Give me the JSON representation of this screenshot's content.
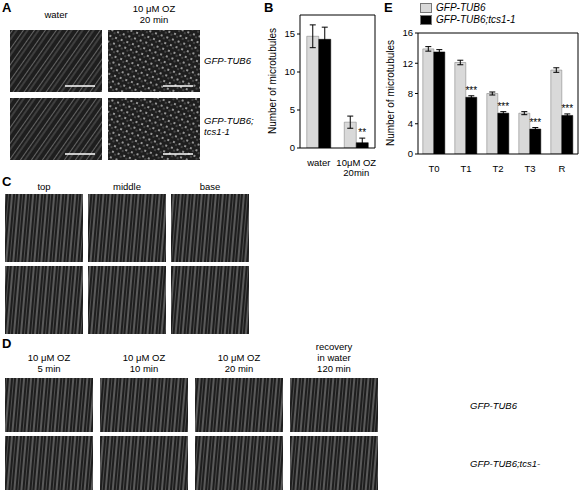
{
  "panels": {
    "A": {
      "letter": "A",
      "columns": [
        "water",
        "10 μM OZ\n20 min"
      ],
      "rows": [
        "GFP-TUB6",
        "GFP-TUB6;\ntcs1-1"
      ]
    },
    "C": {
      "letter": "C",
      "columns": [
        "top",
        "middle",
        "base"
      ]
    },
    "D": {
      "letter": "D",
      "columns": [
        "10 μM OZ\n5 min",
        "10 μM OZ\n10 min",
        "10 μM OZ\n20 min",
        "recovery\nin water\n120 min"
      ],
      "rows": [
        "GFP-TUB6",
        "GFP-TUB6;tcs1-"
      ]
    }
  },
  "chart_data": [
    {
      "panel": "B",
      "type": "bar",
      "y_label": "Number of microtubules",
      "categories": [
        "water",
        "10μM OZ\n20min"
      ],
      "ylim": [
        0,
        17.5
      ],
      "yticks": [
        0,
        5,
        10,
        15
      ],
      "series": [
        {
          "color": "#d9d9d9",
          "values": [
            14.7,
            3.4
          ],
          "errors": [
            1.5,
            0.8
          ]
        },
        {
          "color": "#000000",
          "values": [
            14.3,
            0.7
          ],
          "errors": [
            1.6,
            0.6
          ],
          "significance": [
            null,
            "**"
          ]
        }
      ]
    },
    {
      "panel": "E",
      "type": "bar",
      "y_label": "Number of microtubules",
      "categories": [
        "T0",
        "T1",
        "T2",
        "T3",
        "R"
      ],
      "ylim": [
        0,
        16
      ],
      "yticks": [
        0,
        4,
        8,
        12,
        16
      ],
      "legend": "upper left",
      "series": [
        {
          "name": "GFP-TUB6",
          "color": "#d9d9d9",
          "values": [
            13.9,
            12.1,
            8.0,
            5.4,
            11.1
          ],
          "errors": [
            0.3,
            0.3,
            0.2,
            0.2,
            0.3
          ]
        },
        {
          "name": "GFP-TUB6;tcs1-1",
          "color": "#000000",
          "values": [
            13.5,
            7.5,
            5.4,
            3.3,
            5.1
          ],
          "errors": [
            0.3,
            0.2,
            0.2,
            0.2,
            0.2
          ],
          "significance": [
            null,
            "***",
            "***",
            "***",
            "***"
          ]
        }
      ]
    }
  ]
}
